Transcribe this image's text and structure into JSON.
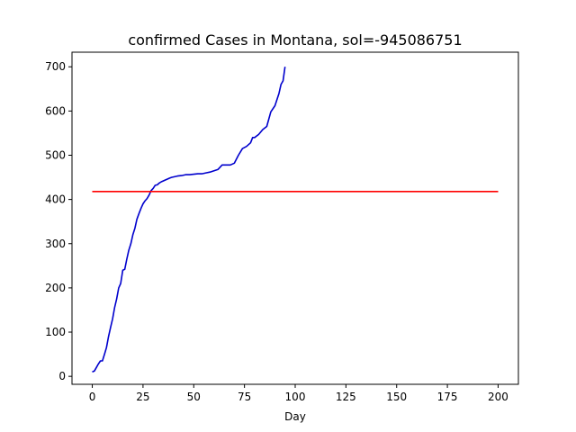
{
  "chart_data": {
    "type": "line",
    "title": "confirmed Cases in Montana, sol=-945086751",
    "xlabel": "Day",
    "ylabel": "",
    "xlim": [
      -10,
      210
    ],
    "ylim": [
      -18,
      733
    ],
    "xticks": [
      0,
      25,
      50,
      75,
      100,
      125,
      150,
      175,
      200
    ],
    "yticks": [
      0,
      100,
      200,
      300,
      400,
      500,
      600,
      700
    ],
    "grid": false,
    "legend": "none",
    "series": [
      {
        "color": "#0000cd",
        "x": [
          0,
          1,
          2,
          3,
          4,
          5,
          6,
          7,
          8,
          9,
          10,
          11,
          12,
          13,
          14,
          15,
          16,
          17,
          18,
          19,
          20,
          21,
          22,
          23,
          24,
          25,
          26,
          27,
          28,
          29,
          30,
          31,
          32,
          33,
          34,
          35,
          36,
          37,
          38,
          39,
          40,
          42,
          44,
          46,
          48,
          50,
          52,
          54,
          56,
          58,
          60,
          62,
          64,
          66,
          68,
          70,
          72,
          74,
          76,
          78,
          79,
          80,
          82,
          84,
          86,
          88,
          90,
          92,
          93,
          94,
          95
        ],
        "y": [
          10,
          12,
          20,
          28,
          35,
          35,
          50,
          65,
          90,
          110,
          130,
          155,
          175,
          200,
          210,
          240,
          242,
          265,
          285,
          300,
          320,
          335,
          355,
          368,
          380,
          390,
          397,
          402,
          410,
          420,
          425,
          432,
          433,
          437,
          440,
          442,
          444,
          446,
          448,
          450,
          451,
          453,
          454,
          456,
          456,
          457,
          458,
          458,
          460,
          462,
          465,
          468,
          478,
          478,
          478,
          482,
          500,
          515,
          520,
          528,
          540,
          540,
          547,
          558,
          565,
          598,
          612,
          640,
          660,
          668,
          700
        ]
      },
      {
        "color": "#ff0000",
        "x": [
          0,
          200
        ],
        "y": [
          418,
          418
        ]
      }
    ]
  }
}
